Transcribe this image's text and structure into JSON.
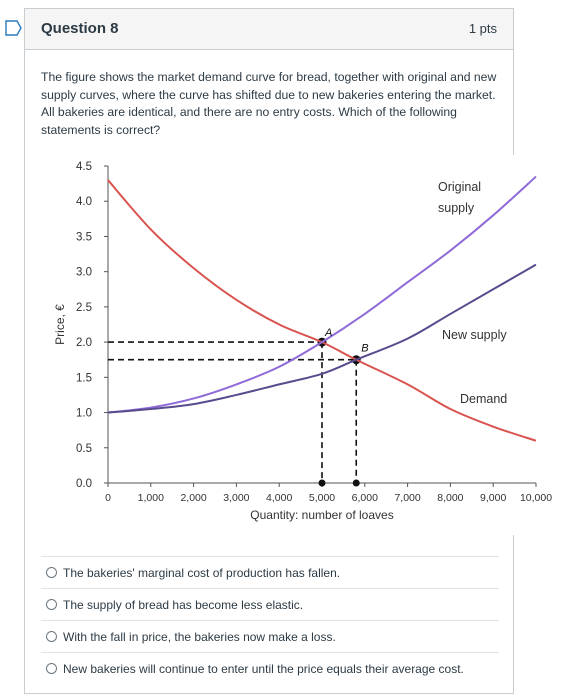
{
  "question": {
    "title": "Question 8",
    "points": "1 pts",
    "text": "The figure shows the market demand curve for bread, together with original and new supply curves, where the curve has shifted due to new bakeries entering the market. All bakeries are identical, and there are no entry costs. Which of the following statements is correct?"
  },
  "answers": [
    {
      "label": "The bakeries' marginal cost of production has fallen."
    },
    {
      "label": "The supply of bread has become less elastic."
    },
    {
      "label": "With the fall in price, the bakeries now make a loss."
    },
    {
      "label": "New bakeries will continue to enter until the price equals their average cost."
    }
  ],
  "colors": {
    "demand": "#d9534f",
    "original_supply": "#8f6ad8",
    "new_supply": "#5a4a8e",
    "accent_flag": "#2b7abc"
  },
  "chart_data": {
    "type": "line",
    "xlabel": "Quantity: number of loaves",
    "ylabel": "Price, €",
    "xlim": [
      0,
      10000
    ],
    "ylim": [
      0,
      4.5
    ],
    "xticks": [
      "0",
      "1,000",
      "2,000",
      "3,000",
      "4,000",
      "5,000",
      "6,000",
      "7,000",
      "8,000",
      "9,000",
      "10,000"
    ],
    "yticks": [
      "0.0",
      "0.5",
      "1.0",
      "1.5",
      "2.0",
      "2.5",
      "3.0",
      "3.5",
      "4.0",
      "4.5"
    ],
    "series": [
      {
        "name": "Demand",
        "x": [
          0,
          1000,
          2000,
          3000,
          4000,
          5000,
          5800,
          7000,
          8000,
          9000,
          10000
        ],
        "y": [
          4.3,
          3.6,
          3.05,
          2.6,
          2.25,
          2.0,
          1.75,
          1.4,
          1.05,
          0.8,
          0.6
        ]
      },
      {
        "name": "Original supply",
        "x": [
          0,
          1000,
          2000,
          3000,
          4000,
          5000,
          6000,
          7000,
          8000,
          9000,
          10000
        ],
        "y": [
          1.0,
          1.07,
          1.2,
          1.4,
          1.65,
          2.0,
          2.4,
          2.85,
          3.3,
          3.8,
          4.35
        ]
      },
      {
        "name": "New supply",
        "x": [
          0,
          1000,
          2000,
          3000,
          4000,
          5000,
          5800,
          7000,
          8000,
          9000,
          10000
        ],
        "y": [
          1.0,
          1.05,
          1.12,
          1.25,
          1.4,
          1.55,
          1.75,
          2.05,
          2.4,
          2.75,
          3.1
        ]
      }
    ],
    "points": [
      {
        "label": "A",
        "x": 5000,
        "y": 2.0
      },
      {
        "label": "B",
        "x": 5800,
        "y": 1.75
      }
    ],
    "series_labels": {
      "original_supply_line1": "Original",
      "original_supply_line2": "supply",
      "new_supply": "New supply",
      "demand": "Demand"
    },
    "grid": false
  }
}
